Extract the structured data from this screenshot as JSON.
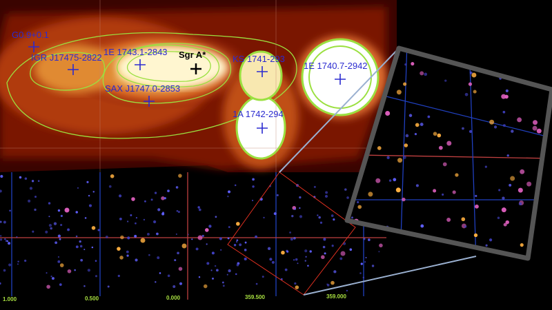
{
  "sources": [
    {
      "label": "G0.9+0.1"
    },
    {
      "label": "IGR J17475-2822"
    },
    {
      "label": "1E 1743.1-2843"
    },
    {
      "label": "Sgr A*"
    },
    {
      "label": "SAX J1747.0-2853"
    },
    {
      "label": "KS 1741-293"
    },
    {
      "label": "1E 1740.7-2942"
    },
    {
      "label": "1A 1742-294"
    }
  ],
  "axis": {
    "ticks": [
      "1.000",
      "0.500",
      "0.000",
      "359.500",
      "359.000"
    ]
  },
  "colors": {
    "contour": "#9be040",
    "source_marker": "#2a2ad0",
    "grid_blue": "#2040c0",
    "grid_red": "#c04040",
    "zoom_box": "#e03020",
    "inset_frame": "#555555"
  }
}
